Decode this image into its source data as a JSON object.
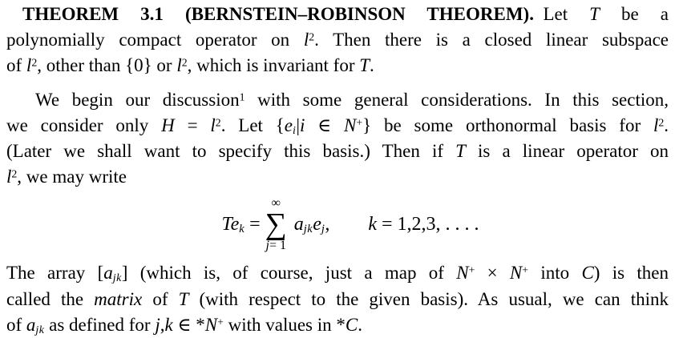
{
  "colors": {
    "background": "#ffffff",
    "text": "#000000"
  },
  "document": {
    "paragraphs": [
      {
        "id": "theorem-statement",
        "lines": [
          {
            "segments": [
              {
                "t": "THEOREM 3.1 (BERNSTEIN–ROBINSON THEOREM).",
                "s": "b"
              },
              {
                "t": " Let ",
                "s": "r"
              },
              {
                "t": "T",
                "s": "i"
              },
              {
                "t": " be a",
                "s": "r"
              }
            ]
          },
          {
            "segments": [
              {
                "t": "polynomially compact operator on ",
                "s": "r"
              },
              {
                "t": "l",
                "s": "i"
              },
              {
                "t": "2",
                "s": "sup"
              },
              {
                "t": ". Then there is a closed linear subspace",
                "s": "r"
              }
            ]
          },
          {
            "segments": [
              {
                "t": "of ",
                "s": "r"
              },
              {
                "t": "l",
                "s": "i"
              },
              {
                "t": "2",
                "s": "sup"
              },
              {
                "t": ", other than {0} or ",
                "s": "r"
              },
              {
                "t": "l",
                "s": "i"
              },
              {
                "t": "2",
                "s": "sup"
              },
              {
                "t": ", which is invariant for ",
                "s": "r"
              },
              {
                "t": "T",
                "s": "i"
              },
              {
                "t": ".",
                "s": "r"
              }
            ]
          }
        ]
      },
      {
        "id": "intro-discussion",
        "lines": [
          {
            "segments": [
              {
                "t": "We begin our discussion",
                "s": "r"
              },
              {
                "t": "1",
                "s": "sup"
              },
              {
                "t": " with some general considerations. In this section,",
                "s": "r"
              }
            ]
          },
          {
            "segments": [
              {
                "t": "we consider only ",
                "s": "r"
              },
              {
                "t": "H",
                "s": "i"
              },
              {
                "t": " = ",
                "s": "r"
              },
              {
                "t": "l",
                "s": "i"
              },
              {
                "t": "2",
                "s": "sup"
              },
              {
                "t": ". Let {",
                "s": "r"
              },
              {
                "t": "e",
                "s": "i"
              },
              {
                "t": "i",
                "s": "isub"
              },
              {
                "t": "|",
                "s": "r"
              },
              {
                "t": "i",
                "s": "i"
              },
              {
                "t": " ∈ ",
                "s": "r"
              },
              {
                "t": "N",
                "s": "i"
              },
              {
                "t": "+",
                "s": "sup"
              },
              {
                "t": "} be some orthonormal basis for ",
                "s": "r"
              },
              {
                "t": "l",
                "s": "i"
              },
              {
                "t": "2",
                "s": "sup"
              },
              {
                "t": ".",
                "s": "r"
              }
            ]
          },
          {
            "segments": [
              {
                "t": "(Later we shall want to specify this basis.) Then if ",
                "s": "r"
              },
              {
                "t": "T",
                "s": "i"
              },
              {
                "t": " is a linear operator on",
                "s": "r"
              }
            ]
          },
          {
            "segments": [
              {
                "t": "l",
                "s": "i"
              },
              {
                "t": "2",
                "s": "sup"
              },
              {
                "t": ", we may write",
                "s": "r"
              }
            ]
          }
        ]
      },
      {
        "id": "matrix-definition",
        "lines": [
          {
            "segments": [
              {
                "t": "The array [",
                "s": "r"
              },
              {
                "t": "a",
                "s": "i"
              },
              {
                "t": "jk",
                "s": "isub"
              },
              {
                "t": "] (which is, of course, just a map of ",
                "s": "r"
              },
              {
                "t": "N",
                "s": "i"
              },
              {
                "t": "+",
                "s": "sup"
              },
              {
                "t": " × ",
                "s": "r"
              },
              {
                "t": "N",
                "s": "i"
              },
              {
                "t": "+",
                "s": "sup"
              },
              {
                "t": " into ",
                "s": "r"
              },
              {
                "t": "C",
                "s": "i"
              },
              {
                "t": ") is then",
                "s": "r"
              }
            ]
          },
          {
            "segments": [
              {
                "t": "called the ",
                "s": "r"
              },
              {
                "t": "matrix",
                "s": "i"
              },
              {
                "t": " of ",
                "s": "r"
              },
              {
                "t": "T",
                "s": "i"
              },
              {
                "t": " (with respect to the given basis). As usual, we can think",
                "s": "r"
              }
            ]
          },
          {
            "segments": [
              {
                "t": "of ",
                "s": "r"
              },
              {
                "t": "a",
                "s": "i"
              },
              {
                "t": "jk",
                "s": "isub"
              },
              {
                "t": " as defined for ",
                "s": "r"
              },
              {
                "t": "j",
                "s": "i"
              },
              {
                "t": ",",
                "s": "r"
              },
              {
                "t": "k",
                "s": "i"
              },
              {
                "t": " ∈ *",
                "s": "r"
              },
              {
                "t": "N",
                "s": "i"
              },
              {
                "t": "+",
                "s": "sup"
              },
              {
                "t": " with values in *",
                "s": "r"
              },
              {
                "t": "C",
                "s": "i"
              },
              {
                "t": ".",
                "s": "r"
              }
            ]
          }
        ]
      }
    ],
    "formula": {
      "lhs": [
        {
          "t": "T",
          "s": "i"
        },
        {
          "t": "e",
          "s": "i"
        },
        {
          "t": "k",
          "s": "isub"
        },
        {
          "t": " = ",
          "s": "r"
        }
      ],
      "sum_upper": "∞",
      "sum_symbol": "∑",
      "sum_lower": [
        {
          "t": "j",
          "s": "i"
        },
        {
          "t": "= 1",
          "s": "r"
        }
      ],
      "rhs": [
        {
          "t": "a",
          "s": "i"
        },
        {
          "t": "jk",
          "s": "isub"
        },
        {
          "t": "e",
          "s": "i"
        },
        {
          "t": "j",
          "s": "isub"
        },
        {
          "t": ",",
          "s": "r"
        }
      ],
      "condition": [
        {
          "t": "k",
          "s": "i"
        },
        {
          "t": " = 1,2,3, . . . .",
          "s": "r"
        }
      ]
    }
  }
}
